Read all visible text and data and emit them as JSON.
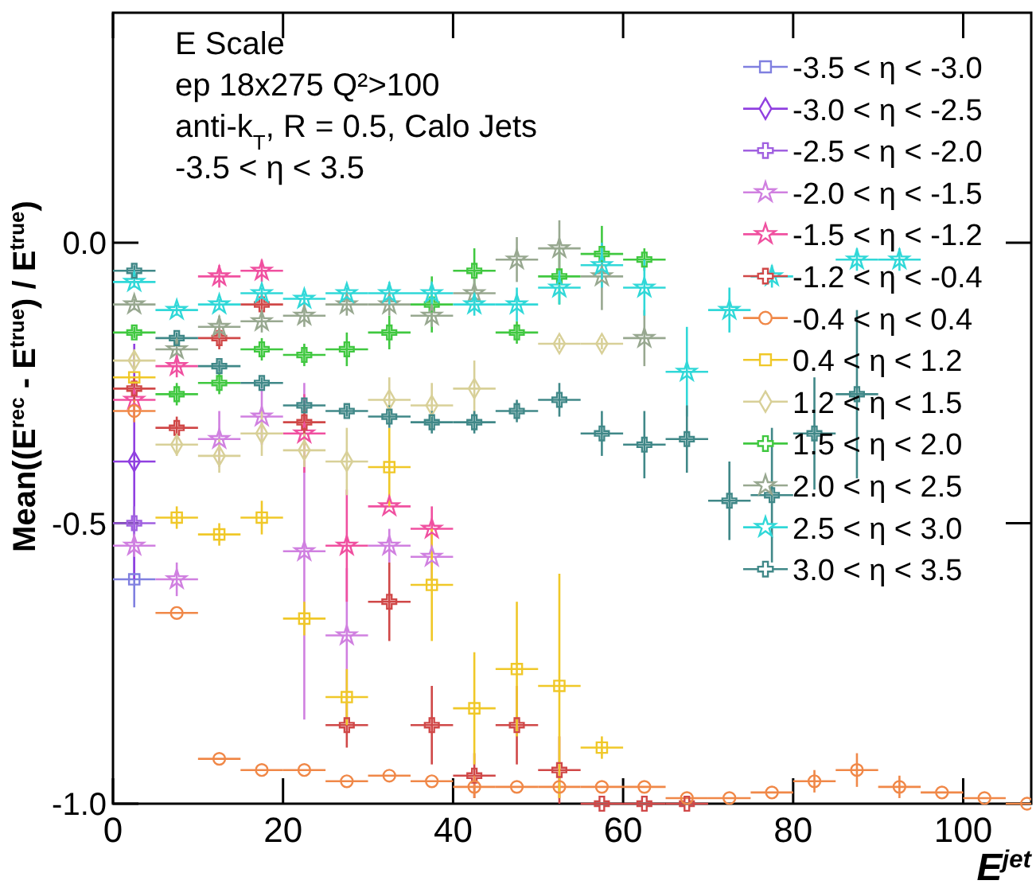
{
  "chart_data": {
    "type": "scatter",
    "xlabel": "E$^{jet}$",
    "ylabel": "Mean((E$^{rec}$ - E$^{true}$) / E$^{true}$)",
    "xlim": [
      0,
      108
    ],
    "ylim": [
      -1.0,
      0.41
    ],
    "xticks": [
      0,
      20,
      40,
      60,
      80,
      100
    ],
    "yticks": [
      {
        "value": -1.0,
        "label": "-1.0"
      },
      {
        "value": -0.5,
        "label": "-0.5"
      },
      {
        "value": 0.0,
        "label": "0.0"
      }
    ],
    "grid": false,
    "legend": "top right",
    "annotations": [
      "E Scale",
      "ep 18x275 Q²>100",
      "anti-k$_{T}$, R = 0.5, Calo Jets",
      "-3.5 < η < 3.5"
    ],
    "series": [
      {
        "name": "-3.5 < η < -3.0",
        "color": "#8080e0",
        "marker": "square",
        "x": [
          2.5
        ],
        "values": [
          -0.6
        ],
        "errors": [
          0.05
        ],
        "xerrors": [
          2.5
        ]
      },
      {
        "name": "-3.0 < η < -2.5",
        "color": "#9040e0",
        "marker": "diamond",
        "x": [
          2.5
        ],
        "values": [
          -0.39
        ],
        "errors": [
          0.21
        ],
        "xerrors": [
          2.5
        ]
      },
      {
        "name": "-2.5 < η < -2.0",
        "color": "#a060e0",
        "marker": "cross",
        "x": [
          2.5
        ],
        "values": [
          -0.5
        ],
        "errors": [
          0.03
        ],
        "xerrors": [
          2.5
        ]
      },
      {
        "name": "-2.0 < η < -1.5",
        "color": "#d080e0",
        "marker": "star",
        "x": [
          2.5,
          7.5,
          12.5,
          17.5,
          22.5,
          27.5,
          32.5,
          37.5
        ],
        "values": [
          -0.54,
          -0.6,
          -0.35,
          -0.31,
          -0.55,
          -0.7,
          -0.54,
          -0.56
        ],
        "errors": [
          0.02,
          0.03,
          0.05,
          0.05,
          0.3,
          0.12,
          0.03,
          0.04
        ],
        "xerrors": [
          2.5,
          2.5,
          2.5,
          2.5,
          2.5,
          2.5,
          2.5,
          2.5
        ]
      },
      {
        "name": "-1.5 < η < -1.2",
        "color": "#f050a0",
        "marker": "star",
        "x": [
          2.5,
          7.5,
          12.5,
          17.5,
          22.5,
          27.5,
          32.5,
          37.5
        ],
        "values": [
          -0.28,
          -0.22,
          -0.06,
          -0.05,
          -0.34,
          -0.54,
          -0.47,
          -0.51
        ],
        "errors": [
          null,
          0.02,
          0.02,
          0.02,
          0.07,
          0.1,
          null,
          0.04
        ],
        "xerrors": [
          2.5,
          2.5,
          2.5,
          2.5,
          2.5,
          2.5,
          2.5,
          2.5
        ]
      },
      {
        "name": "-1.2 < η < -0.4",
        "color": "#d04848",
        "marker": "cross",
        "x": [
          2.5,
          7.5,
          12.5,
          17.5,
          22.5,
          27.5,
          32.5,
          37.5,
          42.5,
          47.5,
          52.5,
          57.5,
          62.5,
          67.5
        ],
        "values": [
          -0.26,
          -0.33,
          -0.17,
          -0.11,
          -0.32,
          -0.86,
          -0.64,
          -0.86,
          -0.95,
          -0.86,
          -0.94,
          -1.0,
          -1.0,
          -1.0
        ],
        "errors": [
          0.02,
          0.02,
          0.02,
          0.02,
          0.03,
          0.04,
          0.07,
          0.07,
          0.04,
          0.07,
          0.06,
          null,
          null,
          null
        ],
        "xerrors": [
          2.5,
          2.5,
          2.5,
          2.5,
          2.5,
          2.5,
          2.5,
          2.5,
          2.5,
          2.5,
          2.5,
          2.5,
          2.5,
          2.5
        ]
      },
      {
        "name": "-0.4 < η < 0.4",
        "color": "#f08848",
        "marker": "circle",
        "x": [
          2.5,
          7.5,
          12.5,
          17.5,
          22.5,
          27.5,
          32.5,
          37.5,
          42.5,
          47.5,
          52.5,
          57.5,
          62.5,
          67.5,
          72.5,
          77.5,
          82.5,
          87.5,
          92.5,
          97.5,
          102.5,
          107.5
        ],
        "values": [
          -0.3,
          -0.66,
          -0.92,
          -0.94,
          -0.94,
          -0.96,
          -0.95,
          -0.96,
          -0.97,
          -0.97,
          -0.97,
          -0.97,
          -0.97,
          -0.99,
          -0.99,
          -0.98,
          -0.96,
          -0.94,
          -0.97,
          -0.98,
          -0.99,
          -1.0
        ],
        "errors": [
          0.02,
          null,
          null,
          null,
          null,
          null,
          null,
          null,
          0.02,
          null,
          0.02,
          null,
          null,
          null,
          null,
          null,
          0.02,
          0.03,
          0.02,
          null,
          null,
          null
        ],
        "xerrors": [
          2.5,
          2.5,
          2.5,
          2.5,
          2.5,
          2.5,
          2.5,
          2.5,
          2.5,
          2.5,
          2.5,
          2.5,
          2.5,
          2.5,
          2.5,
          2.5,
          2.5,
          2.5,
          2.5,
          2.5,
          2.5,
          2.5
        ]
      },
      {
        "name": "0.4 < η < 1.2",
        "color": "#f0c828",
        "marker": "square",
        "x": [
          2.5,
          7.5,
          12.5,
          17.5,
          22.5,
          27.5,
          32.5,
          37.5,
          42.5,
          47.5,
          52.5,
          57.5
        ],
        "values": [
          -0.24,
          -0.49,
          -0.52,
          -0.49,
          -0.67,
          -0.81,
          -0.4,
          -0.61,
          -0.83,
          -0.76,
          -0.79,
          -0.9
        ],
        "errors": [
          null,
          0.02,
          0.02,
          0.03,
          0.03,
          0.05,
          0.07,
          0.1,
          0.1,
          0.12,
          0.2,
          0.02
        ],
        "xerrors": [
          2.5,
          2.5,
          2.5,
          2.5,
          2.5,
          2.5,
          2.5,
          2.5,
          2.5,
          2.5,
          2.5,
          2.5
        ]
      },
      {
        "name": "1.2 < η < 1.5",
        "color": "#d8d098",
        "marker": "diamond",
        "x": [
          2.5,
          7.5,
          12.5,
          17.5,
          22.5,
          27.5,
          32.5,
          37.5,
          42.5,
          52.5,
          57.5
        ],
        "values": [
          -0.21,
          -0.36,
          -0.38,
          -0.34,
          -0.37,
          -0.39,
          -0.28,
          -0.29,
          -0.26,
          -0.18,
          -0.18
        ],
        "errors": [
          0.02,
          0.02,
          0.03,
          0.04,
          0.03,
          0.06,
          0.04,
          0.04,
          0.05,
          0.01,
          0.01
        ],
        "xerrors": [
          2.5,
          2.5,
          2.5,
          2.5,
          2.5,
          2.5,
          2.5,
          2.5,
          2.5,
          2.5,
          2.5
        ]
      },
      {
        "name": "1.5 < η < 2.0",
        "color": "#40c840",
        "marker": "cross",
        "x": [
          2.5,
          7.5,
          12.5,
          17.5,
          22.5,
          27.5,
          32.5,
          37.5,
          42.5,
          47.5,
          52.5,
          57.5,
          62.5
        ],
        "values": [
          -0.16,
          -0.27,
          -0.25,
          -0.19,
          -0.2,
          -0.19,
          -0.16,
          -0.11,
          -0.05,
          -0.16,
          -0.06,
          -0.02,
          -0.03
        ],
        "errors": [
          0.01,
          0.02,
          0.02,
          0.02,
          0.02,
          0.03,
          0.03,
          0.05,
          0.04,
          0.02,
          0.05,
          0.05,
          0.02
        ],
        "xerrors": [
          2.5,
          2.5,
          2.5,
          2.5,
          2.5,
          2.5,
          2.5,
          2.5,
          2.5,
          2.5,
          2.5,
          2.5,
          2.5
        ]
      },
      {
        "name": "2.0 < η < 2.5",
        "color": "#98a890",
        "marker": "star",
        "x": [
          2.5,
          7.5,
          12.5,
          17.5,
          22.5,
          27.5,
          32.5,
          37.5,
          42.5,
          47.5,
          52.5,
          57.5,
          62.5
        ],
        "values": [
          -0.11,
          -0.19,
          -0.15,
          -0.14,
          -0.13,
          -0.11,
          -0.11,
          -0.13,
          -0.09,
          -0.03,
          -0.01,
          -0.06,
          -0.17
        ],
        "errors": [
          0.01,
          0.02,
          0.02,
          0.02,
          0.02,
          0.02,
          0.02,
          0.02,
          0.03,
          0.04,
          0.05,
          0.06,
          0.05
        ],
        "xerrors": [
          2.5,
          2.5,
          2.5,
          2.5,
          2.5,
          2.5,
          2.5,
          2.5,
          2.5,
          2.5,
          2.5,
          2.5,
          2.5
        ]
      },
      {
        "name": "2.5 < η < 3.0",
        "color": "#30d8d8",
        "marker": "star",
        "x": [
          2.5,
          7.5,
          12.5,
          17.5,
          22.5,
          27.5,
          32.5,
          37.5,
          42.5,
          47.5,
          52.5,
          57.5,
          62.5,
          67.5,
          72.5,
          77.5,
          87.5,
          92.5
        ],
        "values": [
          -0.07,
          -0.12,
          -0.11,
          -0.09,
          -0.1,
          -0.09,
          -0.09,
          -0.09,
          -0.11,
          -0.11,
          -0.08,
          -0.04,
          -0.08,
          -0.23,
          -0.12,
          -0.06,
          -0.03,
          -0.03
        ],
        "errors": [
          0.01,
          0.01,
          0.01,
          0.01,
          0.01,
          0.01,
          0.02,
          0.02,
          0.02,
          0.03,
          0.03,
          0.04,
          0.05,
          0.08,
          0.04,
          0.02,
          0.02,
          0.02
        ],
        "xerrors": [
          2.5,
          2.5,
          2.5,
          2.5,
          2.5,
          2.5,
          2.5,
          2.5,
          2.5,
          2.5,
          2.5,
          2.5,
          2.5,
          2.5,
          2.5,
          2.5,
          2.5,
          2.5
        ]
      },
      {
        "name": "3.0 < η < 3.5",
        "color": "#408888",
        "marker": "cross",
        "x": [
          2.5,
          7.5,
          12.5,
          17.5,
          22.5,
          27.5,
          32.5,
          37.5,
          42.5,
          47.5,
          52.5,
          57.5,
          62.5,
          67.5,
          72.5,
          77.5,
          82.5,
          87.5
        ],
        "values": [
          -0.05,
          -0.17,
          -0.22,
          -0.25,
          -0.29,
          -0.3,
          -0.31,
          -0.32,
          -0.32,
          -0.3,
          -0.28,
          -0.34,
          -0.36,
          -0.35,
          -0.46,
          -0.45,
          -0.34,
          -0.27
        ],
        "errors": [
          0.01,
          0.01,
          0.01,
          0.01,
          0.01,
          0.01,
          0.02,
          0.02,
          0.02,
          0.02,
          0.03,
          0.04,
          0.06,
          0.06,
          0.07,
          0.12,
          0.1,
          0.15
        ],
        "xerrors": [
          2.5,
          2.5,
          2.5,
          2.5,
          2.5,
          2.5,
          2.5,
          2.5,
          2.5,
          2.5,
          2.5,
          2.5,
          2.5,
          2.5,
          2.5,
          2.5,
          2.5,
          2.5
        ]
      }
    ]
  }
}
